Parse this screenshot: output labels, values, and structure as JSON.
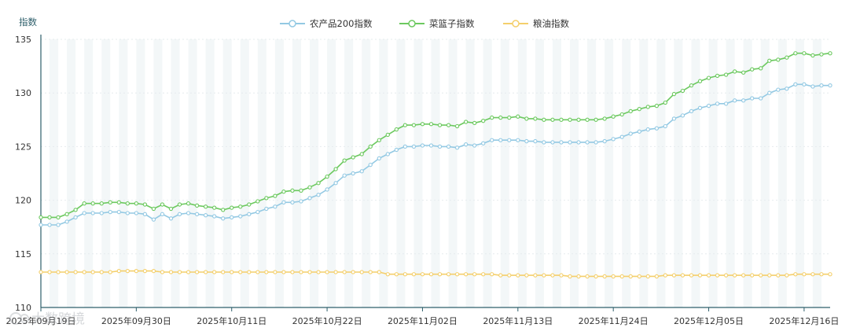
{
  "chart_data": {
    "type": "line",
    "ylabel": "指数",
    "ylim": [
      110,
      135
    ],
    "yticks": [
      "110",
      "115",
      "120",
      "125",
      "130",
      "135"
    ],
    "xtick_labels": [
      "2025年09月19日",
      "2025年09月30日",
      "2025年10月11日",
      "2025年10月22日",
      "2025年11月02日",
      "2025年11月13日",
      "2025年11月24日",
      "2025年12月05日",
      "2025年12月16日"
    ],
    "x_start": "2025-09-19",
    "x_end": "2025-12-19",
    "legend_position": "top-center",
    "grid": "alternating vertical bands",
    "series": [
      {
        "name": "农产品200指数",
        "color": "#93c9e3",
        "values": [
          117.7,
          117.7,
          117.7,
          118.0,
          118.4,
          118.8,
          118.8,
          118.8,
          118.9,
          118.9,
          118.8,
          118.8,
          118.7,
          118.2,
          118.7,
          118.3,
          118.7,
          118.8,
          118.7,
          118.6,
          118.5,
          118.3,
          118.4,
          118.5,
          118.7,
          118.9,
          119.2,
          119.4,
          119.8,
          119.8,
          119.9,
          120.2,
          120.5,
          121.0,
          121.6,
          122.3,
          122.5,
          122.7,
          123.3,
          123.9,
          124.3,
          124.7,
          125.0,
          125.0,
          125.1,
          125.1,
          125.0,
          125.0,
          124.9,
          125.2,
          125.1,
          125.3,
          125.6,
          125.6,
          125.6,
          125.6,
          125.5,
          125.5,
          125.4,
          125.4,
          125.4,
          125.4,
          125.4,
          125.4,
          125.4,
          125.5,
          125.7,
          125.9,
          126.2,
          126.4,
          126.6,
          126.7,
          126.9,
          127.6,
          127.9,
          128.3,
          128.6,
          128.8,
          129.0,
          129.0,
          129.3,
          129.3,
          129.5,
          129.5,
          130.0,
          130.3,
          130.4,
          130.8,
          130.8,
          130.6,
          130.7,
          130.7
        ]
      },
      {
        "name": "菜篮子指数",
        "color": "#6cc95f",
        "values": [
          118.4,
          118.4,
          118.4,
          118.7,
          119.1,
          119.7,
          119.7,
          119.7,
          119.8,
          119.8,
          119.7,
          119.7,
          119.6,
          119.2,
          119.6,
          119.2,
          119.6,
          119.7,
          119.5,
          119.4,
          119.3,
          119.1,
          119.3,
          119.4,
          119.6,
          119.9,
          120.2,
          120.4,
          120.8,
          120.9,
          120.9,
          121.2,
          121.6,
          122.2,
          122.9,
          123.7,
          124.0,
          124.3,
          125.0,
          125.6,
          126.1,
          126.6,
          127.0,
          127.0,
          127.1,
          127.1,
          127.0,
          127.0,
          126.9,
          127.3,
          127.2,
          127.4,
          127.7,
          127.7,
          127.7,
          127.8,
          127.6,
          127.6,
          127.5,
          127.5,
          127.5,
          127.5,
          127.5,
          127.5,
          127.5,
          127.6,
          127.8,
          128.0,
          128.3,
          128.5,
          128.7,
          128.8,
          129.1,
          129.9,
          130.2,
          130.7,
          131.1,
          131.4,
          131.6,
          131.7,
          132.0,
          131.9,
          132.2,
          132.3,
          133.0,
          133.1,
          133.3,
          133.7,
          133.7,
          133.5,
          133.6,
          133.7
        ]
      },
      {
        "name": "粮油指数",
        "color": "#f4cf6b",
        "values": [
          113.3,
          113.3,
          113.3,
          113.3,
          113.3,
          113.3,
          113.3,
          113.3,
          113.3,
          113.4,
          113.4,
          113.4,
          113.4,
          113.4,
          113.3,
          113.3,
          113.3,
          113.3,
          113.3,
          113.3,
          113.3,
          113.3,
          113.3,
          113.3,
          113.3,
          113.3,
          113.3,
          113.3,
          113.3,
          113.3,
          113.3,
          113.3,
          113.3,
          113.3,
          113.3,
          113.3,
          113.3,
          113.3,
          113.3,
          113.3,
          113.1,
          113.1,
          113.1,
          113.1,
          113.1,
          113.1,
          113.1,
          113.1,
          113.1,
          113.1,
          113.1,
          113.1,
          113.1,
          113.0,
          113.0,
          113.0,
          113.0,
          113.0,
          113.0,
          113.0,
          113.0,
          112.9,
          112.9,
          112.9,
          112.9,
          112.9,
          112.9,
          112.9,
          112.9,
          112.9,
          112.9,
          112.9,
          113.0,
          113.0,
          113.0,
          113.0,
          113.0,
          113.0,
          113.0,
          113.0,
          113.0,
          113.0,
          113.0,
          113.0,
          113.0,
          113.0,
          113.0,
          113.1,
          113.1,
          113.1,
          113.1,
          113.1
        ]
      }
    ]
  },
  "watermark": "大数跨境"
}
